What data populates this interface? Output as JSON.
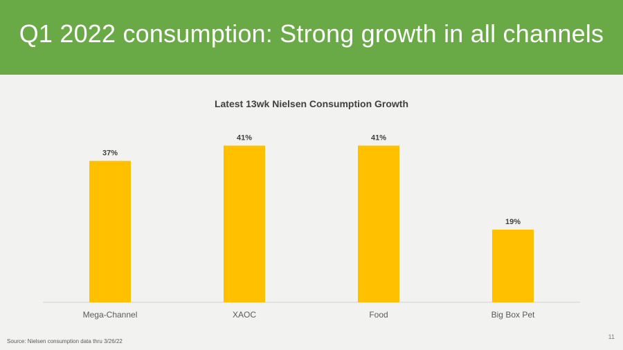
{
  "header": {
    "title": "Q1 2022 consumption: Strong growth in all channels"
  },
  "colors": {
    "header_bg": "#6aaa46",
    "bar": "#ffc000",
    "background": "#f2f2f1"
  },
  "chart_data": {
    "type": "bar",
    "title": "Latest 13wk Nielsen Consumption Growth",
    "categories": [
      "Mega-Channel",
      "XAOC",
      "Food",
      "Big Box Pet"
    ],
    "values": [
      37,
      41,
      41,
      19
    ],
    "data_labels": [
      "37%",
      "41%",
      "41%",
      "19%"
    ],
    "unit": "%",
    "ylim": [
      0,
      42
    ],
    "grid": false,
    "legend": "none"
  },
  "footer": {
    "source": "Source:  Nielsen consumption data thru 3/26/22",
    "page_number": "11"
  }
}
